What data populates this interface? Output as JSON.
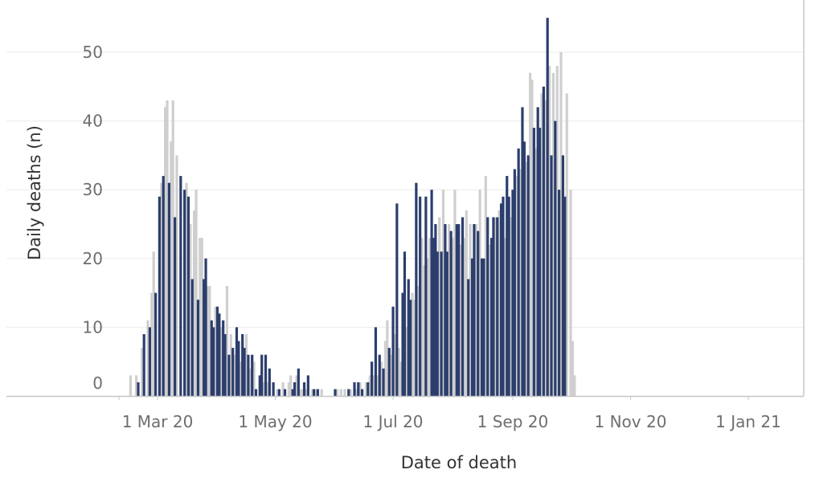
{
  "chart_data": {
    "type": "bar",
    "title": "",
    "xlabel": "Date of death",
    "ylabel": "Daily deaths (n)",
    "ylim": [
      0,
      57
    ],
    "xlim": [
      "2020-02-01",
      "2021-01-31"
    ],
    "grid": true,
    "legend": "none",
    "colors": {
      "light_bar": "#cfcfcf",
      "dark_bar": "#2c3e6d",
      "grid": "#ebebeb",
      "axis": "#c8c8c8"
    },
    "x_ticks": [
      {
        "date": "2020-03-01",
        "label": "1 Mar 20"
      },
      {
        "date": "2020-05-01",
        "label": "1 May 20"
      },
      {
        "date": "2020-07-01",
        "label": "1 Jul 20"
      },
      {
        "date": "2020-09-01",
        "label": "1 Sep 20"
      },
      {
        "date": "2020-11-01",
        "label": "1 Nov 20"
      },
      {
        "date": "2021-01-01",
        "label": "1 Jan 21"
      }
    ],
    "y_ticks": [
      0,
      10,
      20,
      30,
      40,
      50
    ],
    "series": [
      {
        "values": [
          [
            "2020-02-16",
            3
          ],
          [
            "2020-02-19",
            3
          ],
          [
            "2020-02-22",
            7
          ],
          [
            "2020-02-25",
            11
          ],
          [
            "2020-02-27",
            15
          ],
          [
            "2020-02-28",
            21
          ],
          [
            "2020-03-03",
            31
          ],
          [
            "2020-03-05",
            42
          ],
          [
            "2020-03-06",
            43
          ],
          [
            "2020-03-08",
            37
          ],
          [
            "2020-03-09",
            43
          ],
          [
            "2020-03-11",
            35
          ],
          [
            "2020-03-16",
            31
          ],
          [
            "2020-03-18",
            25
          ],
          [
            "2020-03-20",
            27
          ],
          [
            "2020-03-21",
            30
          ],
          [
            "2020-03-23",
            23
          ],
          [
            "2020-03-24",
            23
          ],
          [
            "2020-03-27",
            16
          ],
          [
            "2020-03-28",
            16
          ],
          [
            "2020-03-31",
            13
          ],
          [
            "2020-04-03",
            10
          ],
          [
            "2020-04-06",
            16
          ],
          [
            "2020-04-08",
            9
          ],
          [
            "2020-04-10",
            6
          ],
          [
            "2020-04-13",
            5
          ],
          [
            "2020-04-16",
            9
          ],
          [
            "2020-04-18",
            4
          ],
          [
            "2020-04-20",
            5
          ],
          [
            "2020-04-25",
            2
          ],
          [
            "2020-04-27",
            2
          ],
          [
            "2020-05-02",
            1
          ],
          [
            "2020-05-05",
            2
          ],
          [
            "2020-05-08",
            2
          ],
          [
            "2020-05-09",
            3
          ],
          [
            "2020-05-12",
            3
          ],
          [
            "2020-05-14",
            1
          ],
          [
            "2020-05-15",
            1
          ],
          [
            "2020-05-17",
            1
          ],
          [
            "2020-05-20",
            1
          ],
          [
            "2020-05-22",
            1
          ],
          [
            "2020-05-25",
            1
          ],
          [
            "2020-06-02",
            1
          ],
          [
            "2020-06-04",
            1
          ],
          [
            "2020-06-06",
            1
          ],
          [
            "2020-06-09",
            1
          ],
          [
            "2020-06-12",
            1
          ],
          [
            "2020-06-14",
            2
          ],
          [
            "2020-06-17",
            2
          ],
          [
            "2020-06-19",
            3
          ],
          [
            "2020-06-21",
            3
          ],
          [
            "2020-06-23",
            3
          ],
          [
            "2020-06-25",
            5
          ],
          [
            "2020-06-27",
            8
          ],
          [
            "2020-06-28",
            11
          ],
          [
            "2020-06-30",
            6
          ],
          [
            "2020-07-02",
            9
          ],
          [
            "2020-07-04",
            7
          ],
          [
            "2020-07-05",
            5
          ],
          [
            "2020-07-08",
            10
          ],
          [
            "2020-07-11",
            15
          ],
          [
            "2020-07-12",
            14
          ],
          [
            "2020-07-14",
            16
          ],
          [
            "2020-07-16",
            23
          ],
          [
            "2020-07-17",
            19
          ],
          [
            "2020-07-19",
            20
          ],
          [
            "2020-07-20",
            23
          ],
          [
            "2020-07-25",
            26
          ],
          [
            "2020-07-27",
            30
          ],
          [
            "2020-07-30",
            25
          ],
          [
            "2020-08-01",
            23
          ],
          [
            "2020-08-02",
            30
          ],
          [
            "2020-08-05",
            22
          ],
          [
            "2020-08-07",
            23
          ],
          [
            "2020-08-08",
            27
          ],
          [
            "2020-08-10",
            25
          ],
          [
            "2020-08-13",
            25
          ],
          [
            "2020-08-15",
            30
          ],
          [
            "2020-08-18",
            32
          ],
          [
            "2020-08-20",
            22
          ],
          [
            "2020-08-23",
            26
          ],
          [
            "2020-08-25",
            27
          ],
          [
            "2020-08-28",
            23
          ],
          [
            "2020-08-31",
            26
          ],
          [
            "2020-09-03",
            32
          ],
          [
            "2020-09-05",
            33
          ],
          [
            "2020-09-08",
            34
          ],
          [
            "2020-09-10",
            47
          ],
          [
            "2020-09-11",
            46
          ],
          [
            "2020-09-13",
            36
          ],
          [
            "2020-09-16",
            44
          ],
          [
            "2020-09-18",
            43
          ],
          [
            "2020-09-20",
            48
          ],
          [
            "2020-09-22",
            47
          ],
          [
            "2020-09-24",
            48
          ],
          [
            "2020-09-26",
            50
          ],
          [
            "2020-09-29",
            44
          ],
          [
            "2020-10-01",
            30
          ],
          [
            "2020-10-02",
            8
          ],
          [
            "2020-10-03",
            3
          ]
        ]
      },
      {
        "values": [
          [
            "2020-02-20",
            2
          ],
          [
            "2020-02-23",
            9
          ],
          [
            "2020-02-26",
            10
          ],
          [
            "2020-02-29",
            15
          ],
          [
            "2020-03-02",
            29
          ],
          [
            "2020-03-04",
            32
          ],
          [
            "2020-03-07",
            31
          ],
          [
            "2020-03-10",
            26
          ],
          [
            "2020-03-13",
            32
          ],
          [
            "2020-03-15",
            30
          ],
          [
            "2020-03-17",
            29
          ],
          [
            "2020-03-19",
            17
          ],
          [
            "2020-03-22",
            14
          ],
          [
            "2020-03-25",
            17
          ],
          [
            "2020-03-26",
            20
          ],
          [
            "2020-03-29",
            11
          ],
          [
            "2020-03-30",
            10
          ],
          [
            "2020-04-01",
            13
          ],
          [
            "2020-04-02",
            12
          ],
          [
            "2020-04-04",
            11
          ],
          [
            "2020-04-05",
            9
          ],
          [
            "2020-04-07",
            6
          ],
          [
            "2020-04-09",
            7
          ],
          [
            "2020-04-11",
            10
          ],
          [
            "2020-04-12",
            8
          ],
          [
            "2020-04-14",
            9
          ],
          [
            "2020-04-15",
            7
          ],
          [
            "2020-04-17",
            6
          ],
          [
            "2020-04-19",
            6
          ],
          [
            "2020-04-21",
            1
          ],
          [
            "2020-04-23",
            3
          ],
          [
            "2020-04-24",
            6
          ],
          [
            "2020-04-26",
            6
          ],
          [
            "2020-04-28",
            4
          ],
          [
            "2020-04-30",
            2
          ],
          [
            "2020-05-03",
            1
          ],
          [
            "2020-05-06",
            1
          ],
          [
            "2020-05-10",
            1
          ],
          [
            "2020-05-11",
            2
          ],
          [
            "2020-05-13",
            4
          ],
          [
            "2020-05-16",
            2
          ],
          [
            "2020-05-18",
            3
          ],
          [
            "2020-05-21",
            1
          ],
          [
            "2020-05-23",
            1
          ],
          [
            "2020-06-01",
            1
          ],
          [
            "2020-06-08",
            1
          ],
          [
            "2020-06-11",
            2
          ],
          [
            "2020-06-13",
            2
          ],
          [
            "2020-06-15",
            1
          ],
          [
            "2020-06-18",
            2
          ],
          [
            "2020-06-20",
            5
          ],
          [
            "2020-06-22",
            10
          ],
          [
            "2020-06-24",
            6
          ],
          [
            "2020-06-26",
            4
          ],
          [
            "2020-06-29",
            7
          ],
          [
            "2020-07-01",
            13
          ],
          [
            "2020-07-03",
            28
          ],
          [
            "2020-07-06",
            15
          ],
          [
            "2020-07-07",
            21
          ],
          [
            "2020-07-09",
            17
          ],
          [
            "2020-07-10",
            14
          ],
          [
            "2020-07-13",
            31
          ],
          [
            "2020-07-15",
            29
          ],
          [
            "2020-07-18",
            29
          ],
          [
            "2020-07-21",
            30
          ],
          [
            "2020-07-22",
            23
          ],
          [
            "2020-07-23",
            25
          ],
          [
            "2020-07-24",
            21
          ],
          [
            "2020-07-26",
            21
          ],
          [
            "2020-07-28",
            25
          ],
          [
            "2020-07-29",
            21
          ],
          [
            "2020-07-31",
            24
          ],
          [
            "2020-08-03",
            25
          ],
          [
            "2020-08-04",
            25
          ],
          [
            "2020-08-06",
            26
          ],
          [
            "2020-08-09",
            17
          ],
          [
            "2020-08-11",
            20
          ],
          [
            "2020-08-12",
            25
          ],
          [
            "2020-08-14",
            24
          ],
          [
            "2020-08-16",
            20
          ],
          [
            "2020-08-17",
            20
          ],
          [
            "2020-08-19",
            26
          ],
          [
            "2020-08-21",
            23
          ],
          [
            "2020-08-22",
            26
          ],
          [
            "2020-08-24",
            26
          ],
          [
            "2020-08-26",
            28
          ],
          [
            "2020-08-27",
            29
          ],
          [
            "2020-08-29",
            32
          ],
          [
            "2020-08-30",
            29
          ],
          [
            "2020-09-01",
            30
          ],
          [
            "2020-09-02",
            33
          ],
          [
            "2020-09-04",
            36
          ],
          [
            "2020-09-06",
            42
          ],
          [
            "2020-09-07",
            37
          ],
          [
            "2020-09-09",
            35
          ],
          [
            "2020-09-12",
            39
          ],
          [
            "2020-09-14",
            42
          ],
          [
            "2020-09-15",
            39
          ],
          [
            "2020-09-17",
            45
          ],
          [
            "2020-09-19",
            55
          ],
          [
            "2020-09-21",
            35
          ],
          [
            "2020-09-23",
            40
          ],
          [
            "2020-09-25",
            30
          ],
          [
            "2020-09-27",
            35
          ],
          [
            "2020-09-28",
            29
          ]
        ]
      }
    ]
  }
}
